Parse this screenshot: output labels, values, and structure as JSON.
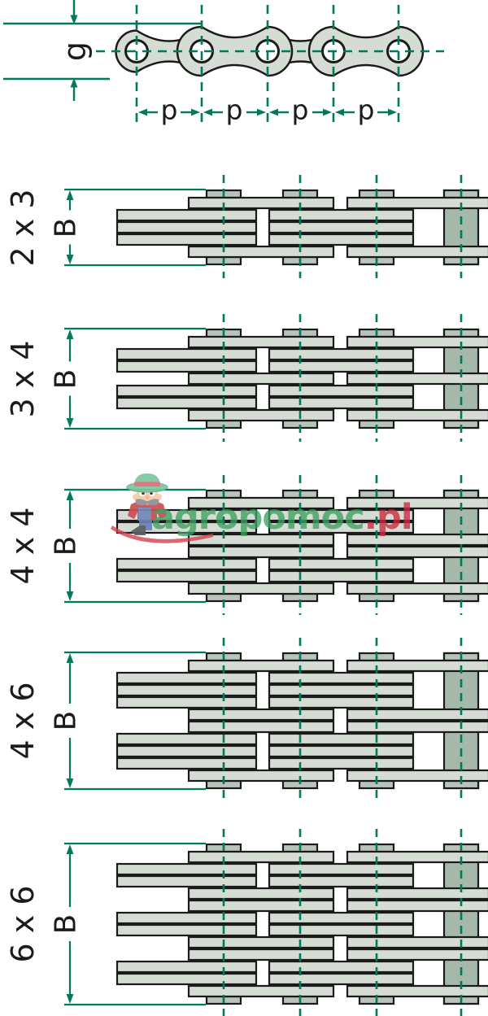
{
  "top_view": {
    "g_label": "g",
    "p_labels": [
      "p",
      "p",
      "p",
      "p"
    ],
    "pin_count": 5
  },
  "dimensions": {
    "width_label": "B"
  },
  "sections": [
    {
      "label": "2 x 3",
      "pattern": [
        1,
        2,
        2,
        2,
        1
      ]
    },
    {
      "label": "3 x 4",
      "pattern": [
        1,
        2,
        2,
        1,
        2,
        2,
        1
      ]
    },
    {
      "label": "4 x 4",
      "pattern": [
        1,
        2,
        2,
        1,
        1,
        2,
        2,
        1
      ]
    },
    {
      "label": "4 x 6",
      "pattern": [
        1,
        2,
        2,
        2,
        1,
        1,
        2,
        2,
        2,
        1
      ]
    },
    {
      "label": "6 x 6",
      "pattern": [
        1,
        2,
        2,
        1,
        1,
        2,
        2,
        1,
        1,
        2,
        2,
        1
      ]
    }
  ],
  "watermark": {
    "text_green": "agropomoc",
    "text_red": ".pl"
  },
  "colors": {
    "teal": "#00795d",
    "plate": "#d5dcd4",
    "cap": "#b7c4b9",
    "pin": "#a4b9aa",
    "outline": "#1b1b1b",
    "watermark_green": "#3ea05f",
    "watermark_red": "#ce283e"
  }
}
